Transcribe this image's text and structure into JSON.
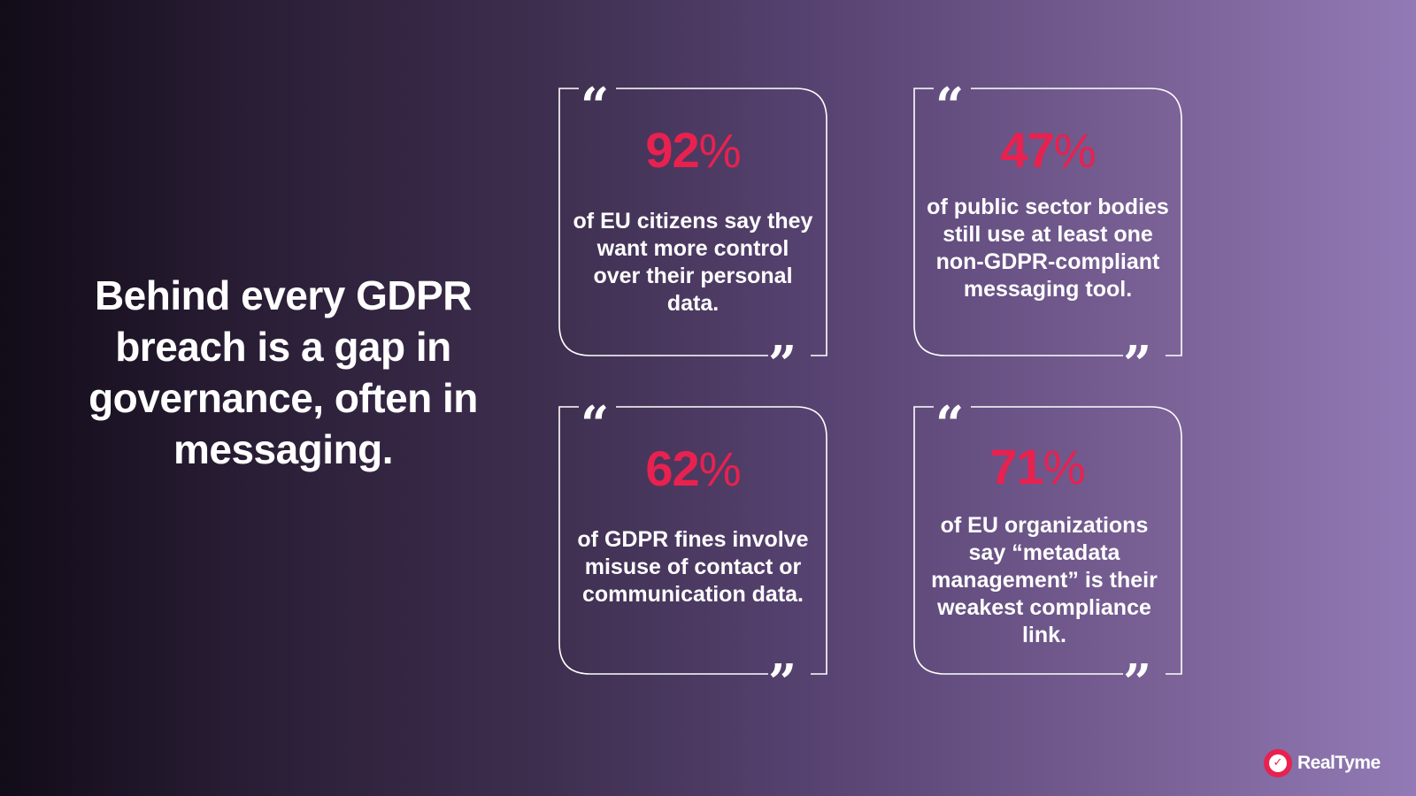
{
  "headline": "Behind every GDPR breach is a gap in governance, often in messaging.",
  "quote_open": "“",
  "quote_close": "”",
  "cards": [
    {
      "stat": "92",
      "pct": "%",
      "text": "of EU citizens say they want more control over their personal data."
    },
    {
      "stat": "47",
      "pct": "%",
      "text": "of public sector bodies still use at least one non-GDPR-compliant messaging tool."
    },
    {
      "stat": "62",
      "pct": "%",
      "text": "of GDPR fines involve misuse of contact or communication data."
    },
    {
      "stat": "71",
      "pct": "%",
      "text": "of EU organizations say “metadata management” is their weakest compliance link."
    }
  ],
  "logo": {
    "text": "RealTyme",
    "icon": "realtyme-logo-icon"
  },
  "colors": {
    "accent": "#e8214f",
    "text": "#ffffff",
    "bg_start": "#120b18",
    "bg_end": "#927ab6"
  }
}
